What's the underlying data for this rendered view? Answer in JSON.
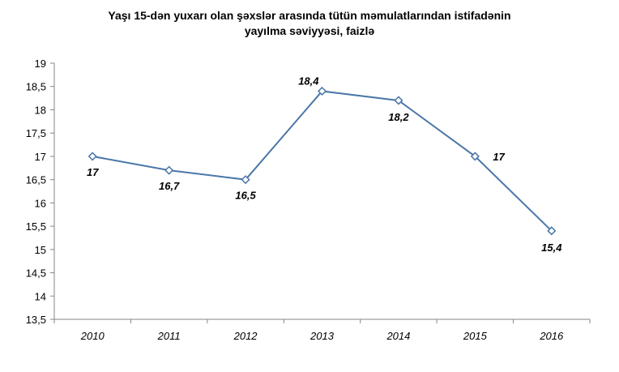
{
  "chart_data": {
    "type": "line",
    "title_line1": "Yaşı 15-dən yuxarı olan şəxslər arasında tütün məmulatlarından istifadənin",
    "title_line2": "yayılma səviyyəsi, faizlə",
    "categories": [
      "2010",
      "2011",
      "2012",
      "2013",
      "2014",
      "2015",
      "2016"
    ],
    "series": [
      {
        "values": [
          17,
          16.7,
          16.5,
          18.4,
          18.2,
          17,
          15.4
        ],
        "color": "#4a76a8"
      }
    ],
    "data_labels": [
      "17",
      "16,7",
      "16,5",
      "18,4",
      "18,2",
      "17",
      "15,4"
    ],
    "ylim": [
      13.5,
      19
    ],
    "yticks": [
      13.5,
      14,
      14.5,
      15,
      15.5,
      16,
      16.5,
      17,
      17.5,
      18,
      18.5,
      19
    ],
    "ytick_labels": [
      "13,5",
      "14",
      "14,5",
      "15",
      "15,5",
      "16",
      "16,5",
      "17",
      "17,5",
      "18",
      "18,5",
      "19"
    ],
    "grid": false,
    "legend": false
  }
}
